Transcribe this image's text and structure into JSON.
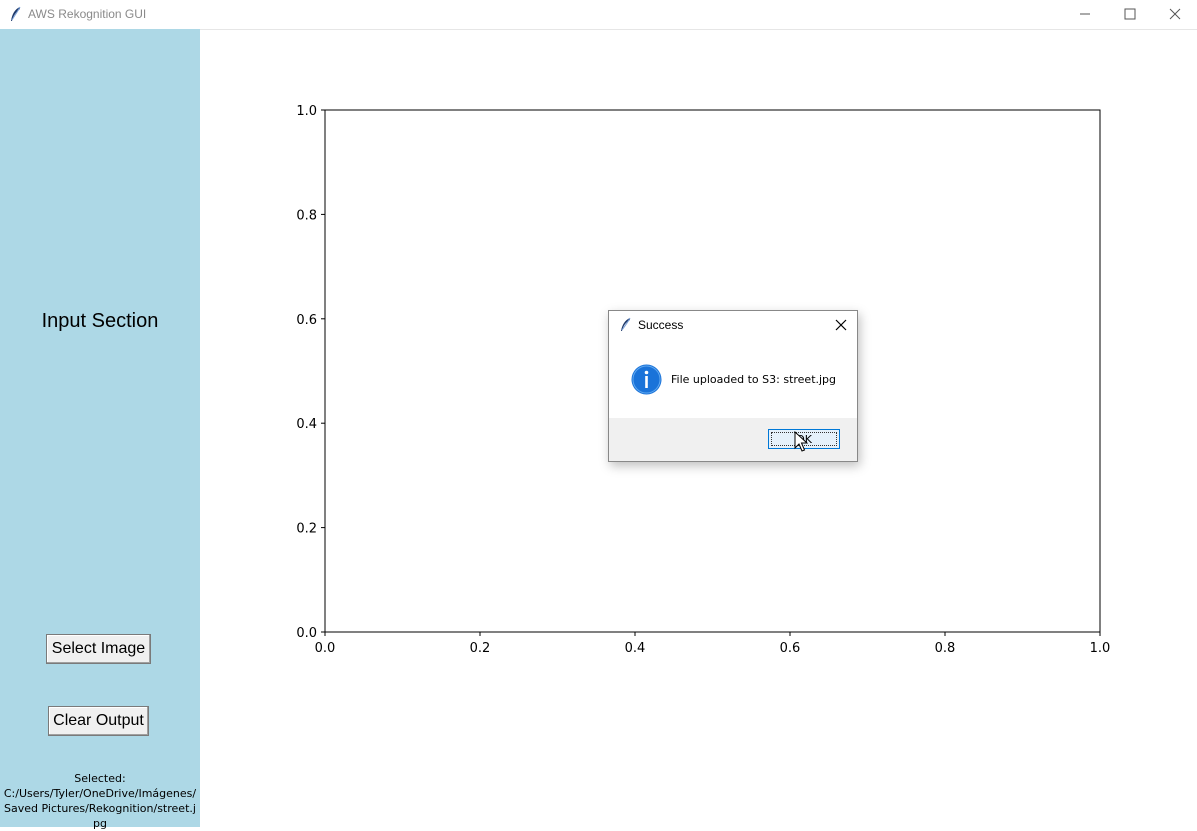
{
  "window": {
    "title": "AWS Rekognition GUI",
    "controls": [
      "minimize",
      "maximize",
      "close"
    ]
  },
  "sidebar": {
    "background": "#add8e6",
    "heading": "Input Section",
    "select_button": "Select Image",
    "clear_button": "Clear Output",
    "selected_label": "Selected:",
    "selected_path": "C:/Users/Tyler/OneDrive/Imágenes/Saved Pictures/Rekognition/street.jpg"
  },
  "chart_data": {
    "type": "scatter",
    "series": [],
    "xlim": [
      0.0,
      1.0
    ],
    "ylim": [
      0.0,
      1.0
    ],
    "xticks": [
      "0.0",
      "0.2",
      "0.4",
      "0.6",
      "0.8",
      "1.0"
    ],
    "yticks": [
      "0.0",
      "0.2",
      "0.4",
      "0.6",
      "0.8",
      "1.0"
    ],
    "grid": false
  },
  "dialog": {
    "title": "Success",
    "message": "File uploaded to S3: street.jpg",
    "ok_label": "OK",
    "icon": "info-icon",
    "accent": "#0078d7"
  }
}
